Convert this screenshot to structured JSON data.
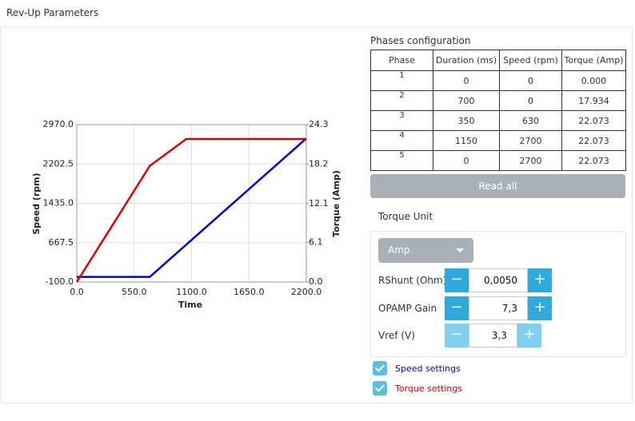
{
  "header": {
    "title": "Rev-Up Parameters"
  },
  "chart_data": {
    "type": "line",
    "x_label": "Time",
    "y_label": "Speed (rpm)",
    "y2_label": "Torque (Amp)",
    "x": [
      0,
      700,
      1050,
      2200
    ],
    "series": [
      {
        "name": "Speed settings",
        "color": "#0000dd",
        "values": [
          0,
          0,
          630,
          2700
        ]
      },
      {
        "name": "Torque settings",
        "color": "#dd0000",
        "axis": "y2",
        "values": [
          0,
          17.934,
          22.073,
          22.073
        ]
      }
    ],
    "xlim": [
      0,
      2200
    ],
    "xticks": [
      {
        "value": 0,
        "label": "0.0"
      },
      {
        "value": 550,
        "label": "550.0"
      },
      {
        "value": 1100,
        "label": "1100.0"
      },
      {
        "value": 1650,
        "label": "1650.0"
      },
      {
        "value": 2200,
        "label": "2200.0"
      }
    ],
    "ylim": [
      -100,
      2970
    ],
    "yticks": [
      {
        "value": -100,
        "label": "-100.0"
      },
      667.5,
      {
        "value": 1435,
        "label": "1435.0"
      },
      2202.5,
      {
        "value": 2970,
        "label": "2970.0"
      }
    ],
    "y2lim": [
      0,
      24.3
    ],
    "y2ticks": [
      {
        "value": 0,
        "label": "0.0"
      },
      6.1,
      12.1,
      18.2,
      24.3
    ],
    "grid": true
  },
  "phases": {
    "title": "Phases configuration",
    "columns": [
      "Phase",
      "Duration (ms)",
      "Speed (rpm)",
      "Torque (Amp)"
    ],
    "rows": [
      [
        "1",
        "0",
        "0",
        "0.000"
      ],
      [
        "2",
        "700",
        "0",
        "17.934"
      ],
      [
        "3",
        "350",
        "630",
        "22.073"
      ],
      [
        "4",
        "1150",
        "2700",
        "22.073"
      ],
      [
        "5",
        "0",
        "2700",
        "22.073"
      ]
    ],
    "button": "Read all"
  },
  "torque_unit": {
    "title": "Torque Unit",
    "unit": "Amp",
    "fields": [
      {
        "label": "RShunt (Ohm)",
        "value": "0,0050"
      },
      {
        "label": "OPAMP Gain",
        "value": "7,3"
      },
      {
        "label": "Vref (V)",
        "value": "3,3"
      }
    ]
  }
}
